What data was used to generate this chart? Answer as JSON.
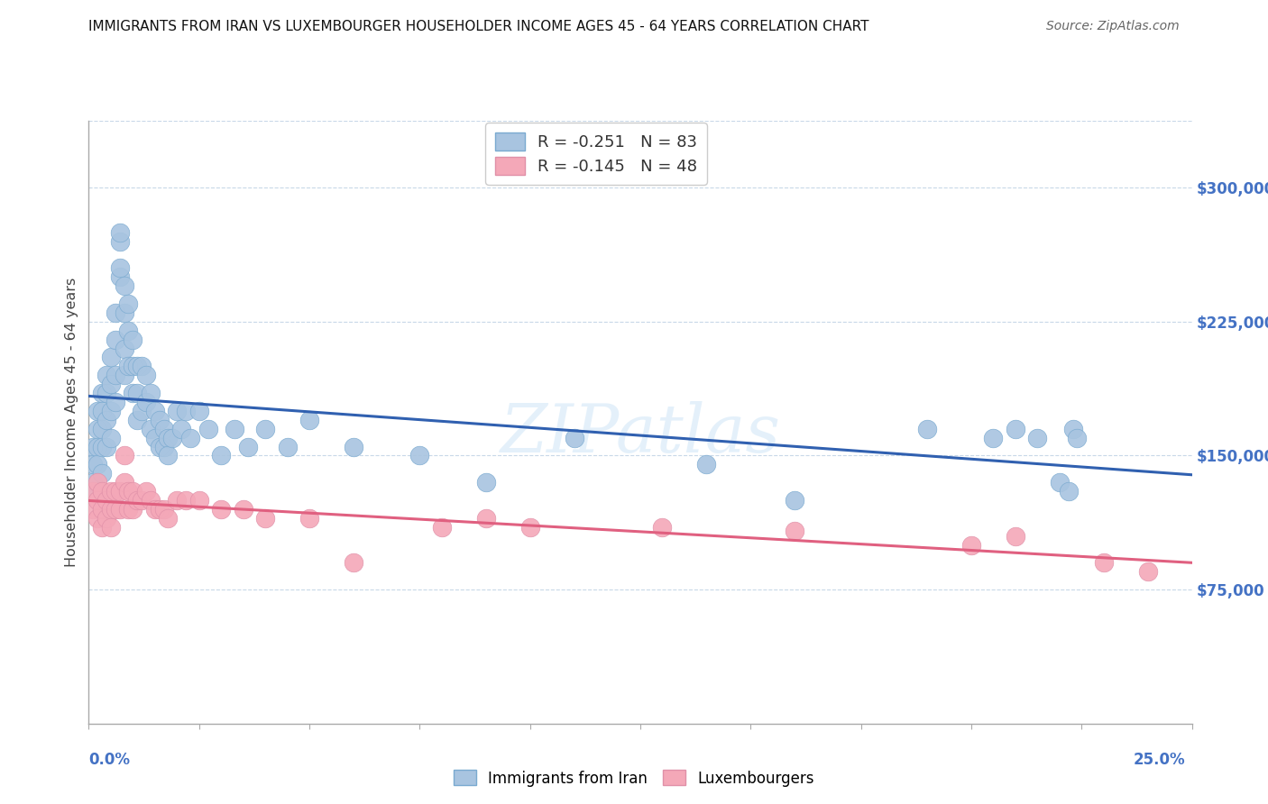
{
  "title": "IMMIGRANTS FROM IRAN VS LUXEMBOURGER HOUSEHOLDER INCOME AGES 45 - 64 YEARS CORRELATION CHART",
  "source": "Source: ZipAtlas.com",
  "ylabel": "Householder Income Ages 45 - 64 years",
  "ytick_values": [
    75000,
    150000,
    225000,
    300000
  ],
  "ymin": 0,
  "ymax": 337500,
  "xmin": 0.0,
  "xmax": 0.25,
  "blue_scatter_color": "#A8C4E0",
  "pink_scatter_color": "#F4A8B8",
  "blue_line_color": "#3060B0",
  "pink_line_color": "#E06080",
  "blue_edge_color": "#7AAAD0",
  "pink_edge_color": "#E090A8",
  "watermark": "ZIPatlas",
  "iran_R": -0.251,
  "iran_N": 83,
  "lux_R": -0.145,
  "lux_N": 48,
  "iran_x": [
    0.001,
    0.001,
    0.001,
    0.002,
    0.002,
    0.002,
    0.002,
    0.002,
    0.003,
    0.003,
    0.003,
    0.003,
    0.003,
    0.004,
    0.004,
    0.004,
    0.004,
    0.005,
    0.005,
    0.005,
    0.005,
    0.006,
    0.006,
    0.006,
    0.006,
    0.007,
    0.007,
    0.007,
    0.007,
    0.008,
    0.008,
    0.008,
    0.008,
    0.009,
    0.009,
    0.009,
    0.01,
    0.01,
    0.01,
    0.011,
    0.011,
    0.011,
    0.012,
    0.012,
    0.013,
    0.013,
    0.014,
    0.014,
    0.015,
    0.015,
    0.016,
    0.016,
    0.017,
    0.017,
    0.018,
    0.018,
    0.019,
    0.02,
    0.021,
    0.022,
    0.023,
    0.025,
    0.027,
    0.03,
    0.033,
    0.036,
    0.04,
    0.045,
    0.05,
    0.06,
    0.075,
    0.09,
    0.11,
    0.14,
    0.16,
    0.19,
    0.205,
    0.21,
    0.215,
    0.22,
    0.222,
    0.223,
    0.224
  ],
  "iran_y": [
    155000,
    145000,
    135000,
    175000,
    165000,
    155000,
    145000,
    130000,
    185000,
    175000,
    165000,
    155000,
    140000,
    195000,
    185000,
    170000,
    155000,
    205000,
    190000,
    175000,
    160000,
    230000,
    215000,
    195000,
    180000,
    250000,
    255000,
    270000,
    275000,
    245000,
    230000,
    210000,
    195000,
    235000,
    220000,
    200000,
    215000,
    200000,
    185000,
    200000,
    185000,
    170000,
    200000,
    175000,
    195000,
    180000,
    185000,
    165000,
    175000,
    160000,
    170000,
    155000,
    165000,
    155000,
    160000,
    150000,
    160000,
    175000,
    165000,
    175000,
    160000,
    175000,
    165000,
    150000,
    165000,
    155000,
    165000,
    155000,
    170000,
    155000,
    150000,
    135000,
    160000,
    145000,
    125000,
    165000,
    160000,
    165000,
    160000,
    135000,
    130000,
    165000,
    160000
  ],
  "lux_x": [
    0.001,
    0.001,
    0.002,
    0.002,
    0.002,
    0.003,
    0.003,
    0.003,
    0.004,
    0.004,
    0.005,
    0.005,
    0.005,
    0.006,
    0.006,
    0.007,
    0.007,
    0.008,
    0.008,
    0.009,
    0.009,
    0.01,
    0.01,
    0.011,
    0.012,
    0.013,
    0.014,
    0.015,
    0.016,
    0.017,
    0.018,
    0.02,
    0.022,
    0.025,
    0.03,
    0.035,
    0.04,
    0.05,
    0.06,
    0.08,
    0.09,
    0.1,
    0.13,
    0.16,
    0.2,
    0.21,
    0.23,
    0.24
  ],
  "lux_y": [
    130000,
    120000,
    135000,
    125000,
    115000,
    130000,
    120000,
    110000,
    125000,
    115000,
    130000,
    120000,
    110000,
    130000,
    120000,
    130000,
    120000,
    150000,
    135000,
    130000,
    120000,
    130000,
    120000,
    125000,
    125000,
    130000,
    125000,
    120000,
    120000,
    120000,
    115000,
    125000,
    125000,
    125000,
    120000,
    120000,
    115000,
    115000,
    90000,
    110000,
    115000,
    110000,
    110000,
    108000,
    100000,
    105000,
    90000,
    85000
  ]
}
